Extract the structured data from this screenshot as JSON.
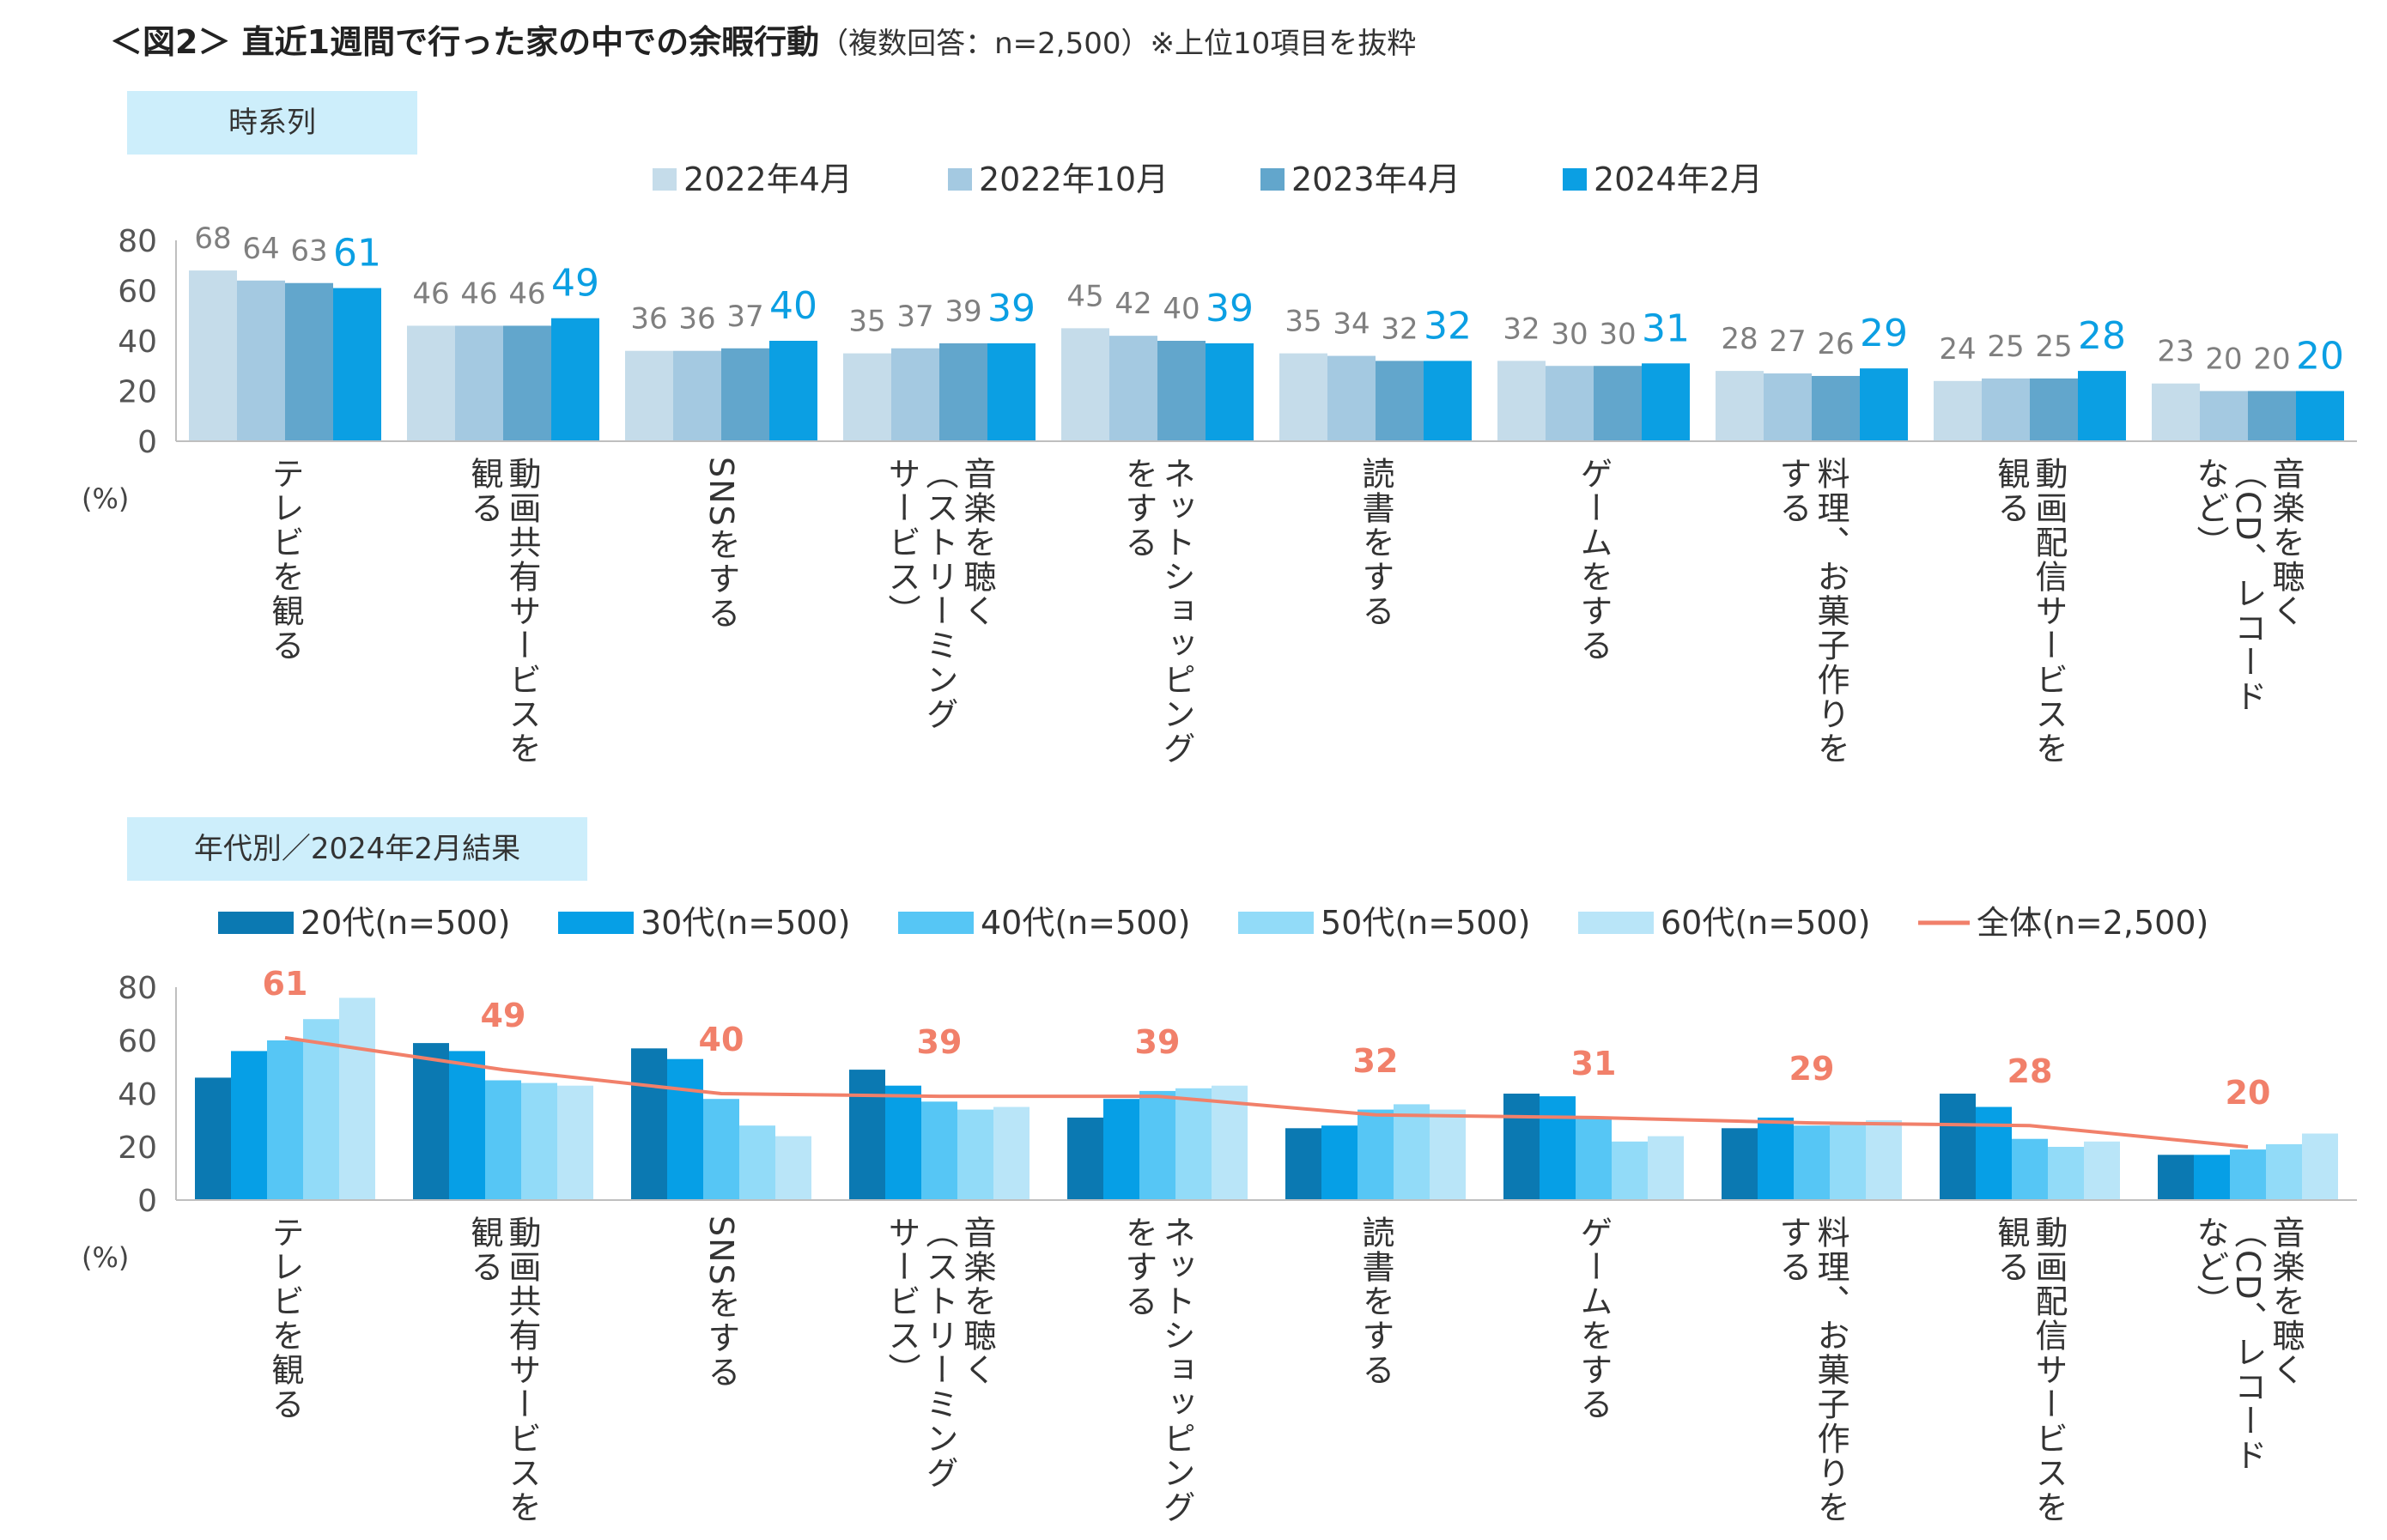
{
  "title": {
    "main": "＜図2＞ 直近1週間で行った家の中での余暇行動",
    "note": "（複数回答：n=2,500）※上位10項目を抜粋"
  },
  "sections": {
    "time_series_label": "時系列",
    "age_label": "年代別／2024年2月結果"
  },
  "chart_data": [
    {
      "type": "bar",
      "categories": [
        [
          "テレビを観る"
        ],
        [
          "動画共有サービスを",
          "観る"
        ],
        [
          "SNSをする"
        ],
        [
          "音楽を聴く",
          "（ストリーミング",
          "サービス）"
        ],
        [
          "ネットショッピング",
          "をする"
        ],
        [
          "読書をする"
        ],
        [
          "ゲームをする"
        ],
        [
          "料理、お菓子作りを",
          "する"
        ],
        [
          "動画配信サービスを",
          "観る"
        ],
        [
          "音楽を聴く",
          "（CD、レコード",
          "など）"
        ]
      ],
      "series": [
        {
          "name": "2022年4月",
          "color": "#c5dcea",
          "values": [
            68,
            46,
            36,
            35,
            45,
            35,
            32,
            28,
            24,
            23
          ]
        },
        {
          "name": "2022年10月",
          "color": "#a4c9e1",
          "values": [
            64,
            46,
            36,
            37,
            42,
            34,
            30,
            27,
            25,
            20
          ]
        },
        {
          "name": "2023年4月",
          "color": "#62a6cc",
          "values": [
            63,
            46,
            37,
            39,
            40,
            32,
            30,
            26,
            25,
            20
          ]
        },
        {
          "name": "2024年2月",
          "color": "#0b9fe3",
          "values": [
            61,
            49,
            40,
            39,
            39,
            32,
            31,
            29,
            28,
            20
          ]
        }
      ],
      "ylabel": "(%)",
      "ylim": [
        0,
        80
      ],
      "yticks": [
        0,
        20,
        40,
        60,
        80
      ],
      "grid": false,
      "legend": "top"
    },
    {
      "type": "bar",
      "categories": [
        [
          "テレビを観る"
        ],
        [
          "動画共有サービスを",
          "観る"
        ],
        [
          "SNSをする"
        ],
        [
          "音楽を聴く",
          "（ストリーミング",
          "サービス）"
        ],
        [
          "ネットショッピング",
          "をする"
        ],
        [
          "読書をする"
        ],
        [
          "ゲームをする"
        ],
        [
          "料理、お菓子作りを",
          "する"
        ],
        [
          "動画配信サービスを",
          "観る"
        ],
        [
          "音楽を聴く",
          "（CD、レコード",
          "など）"
        ]
      ],
      "series": [
        {
          "name": "20代(n=500)",
          "color": "#0b79b2",
          "values": [
            46,
            59,
            57,
            49,
            31,
            27,
            40,
            27,
            40,
            17
          ]
        },
        {
          "name": "30代(n=500)",
          "color": "#069fe6",
          "values": [
            56,
            56,
            53,
            43,
            38,
            28,
            39,
            31,
            35,
            17
          ]
        },
        {
          "name": "40代(n=500)",
          "color": "#56c6f5",
          "values": [
            60,
            45,
            38,
            37,
            41,
            34,
            31,
            28,
            23,
            19
          ]
        },
        {
          "name": "50代(n=500)",
          "color": "#92dbf8",
          "values": [
            68,
            44,
            28,
            34,
            42,
            36,
            22,
            29,
            20,
            21
          ]
        },
        {
          "name": "60代(n=500)",
          "color": "#b9e5f8",
          "values": [
            76,
            43,
            24,
            35,
            43,
            34,
            24,
            30,
            22,
            25
          ]
        }
      ],
      "line": {
        "name": "全体(n=2,500)",
        "color": "#f1806a",
        "values": [
          61,
          49,
          40,
          39,
          39,
          32,
          31,
          29,
          28,
          20
        ]
      },
      "ylabel": "(%)",
      "ylim": [
        0,
        80
      ],
      "yticks": [
        0,
        20,
        40,
        60,
        80
      ],
      "grid": false,
      "legend": "top"
    }
  ]
}
